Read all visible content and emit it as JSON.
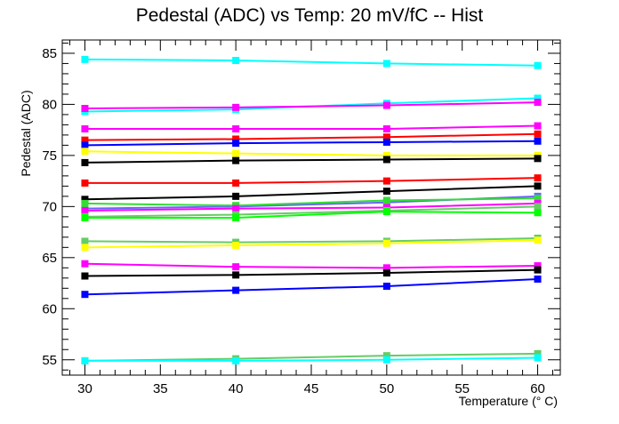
{
  "chart_data": {
    "type": "line",
    "title": "Pedestal (ADC) vs Temp: 20 mV/fC -- Hist",
    "xlabel": "Temperature (° C)",
    "ylabel": "Pedestal (ADC)",
    "xlim": [
      28.5,
      61.5
    ],
    "ylim": [
      53.5,
      86.3
    ],
    "xticks": [
      30,
      35,
      40,
      45,
      50,
      55,
      60
    ],
    "yticks": [
      55,
      60,
      65,
      70,
      75,
      80,
      85
    ],
    "x": [
      30,
      40,
      50,
      60
    ],
    "grid": false,
    "legend": "none",
    "series": [
      {
        "color": "#00ffff",
        "values": [
          84.4,
          84.3,
          84.0,
          83.8
        ]
      },
      {
        "color": "#00ffff",
        "values": [
          79.3,
          79.5,
          80.1,
          80.6
        ]
      },
      {
        "color": "#ff00ff",
        "values": [
          79.6,
          79.7,
          79.9,
          80.2
        ]
      },
      {
        "color": "#ff00ff",
        "values": [
          77.6,
          77.6,
          77.6,
          77.9
        ]
      },
      {
        "color": "#ff0000",
        "values": [
          76.5,
          76.6,
          76.8,
          77.1
        ]
      },
      {
        "color": "#0000ff",
        "values": [
          76.0,
          76.2,
          76.3,
          76.4
        ]
      },
      {
        "color": "#ffff00",
        "values": [
          75.4,
          75.2,
          75.0,
          75.0
        ]
      },
      {
        "color": "#000000",
        "values": [
          74.3,
          74.5,
          74.6,
          74.7
        ]
      },
      {
        "color": "#ff0000",
        "values": [
          72.3,
          72.3,
          72.5,
          72.8
        ]
      },
      {
        "color": "#000000",
        "values": [
          70.7,
          71.0,
          71.5,
          72.0
        ]
      },
      {
        "color": "#6666ff",
        "values": [
          69.8,
          70.0,
          70.4,
          71.0
        ]
      },
      {
        "color": "#33dd33",
        "values": [
          70.3,
          70.1,
          70.6,
          70.8
        ]
      },
      {
        "color": "#ff00ff",
        "values": [
          69.6,
          69.8,
          69.9,
          70.3
        ]
      },
      {
        "color": "#66cc66",
        "values": [
          69.0,
          69.2,
          69.6,
          70.0
        ]
      },
      {
        "color": "#00ff00",
        "values": [
          68.9,
          68.9,
          69.5,
          69.4
        ]
      },
      {
        "color": "#66cc66",
        "values": [
          66.6,
          66.5,
          66.6,
          66.9
        ]
      },
      {
        "color": "#ffff00",
        "values": [
          66.0,
          66.2,
          66.4,
          66.7
        ]
      },
      {
        "color": "#ff00ff",
        "values": [
          64.4,
          64.1,
          64.0,
          64.2
        ]
      },
      {
        "color": "#000000",
        "values": [
          63.2,
          63.3,
          63.5,
          63.8
        ]
      },
      {
        "color": "#0000ff",
        "values": [
          61.4,
          61.8,
          62.2,
          62.9
        ]
      },
      {
        "color": "#66cc66",
        "values": [
          54.9,
          55.1,
          55.4,
          55.6
        ]
      },
      {
        "color": "#00ffff",
        "values": [
          54.9,
          54.9,
          55.0,
          55.2
        ]
      }
    ]
  }
}
